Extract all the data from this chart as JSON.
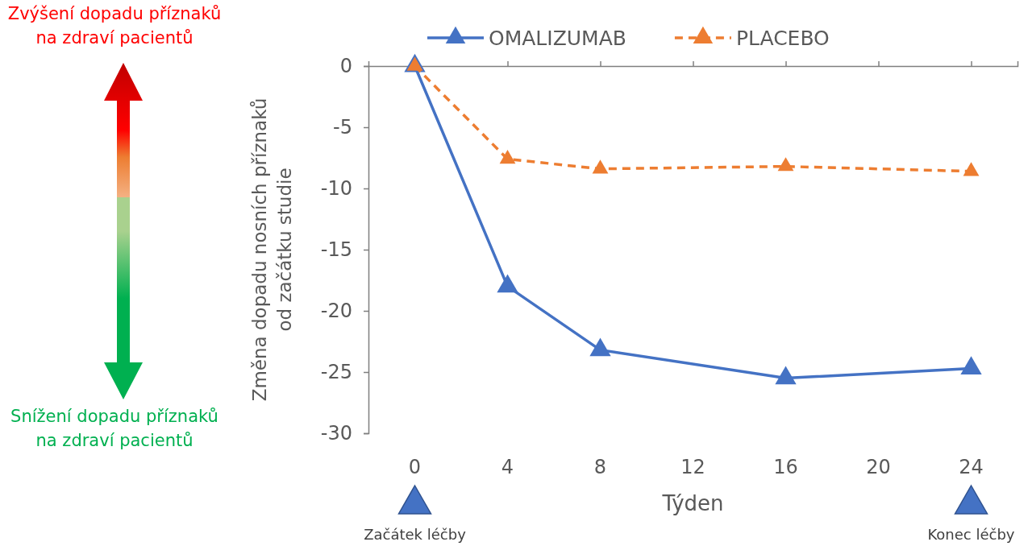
{
  "chart_data": {
    "type": "line",
    "xlabel": "Týden",
    "ylabel": "Změna dopadu nosních příznaků od začátku studie",
    "x": [
      0,
      4,
      8,
      16,
      24
    ],
    "series": [
      {
        "name": "OMALIZUMAB",
        "color": "#4472c4",
        "values": [
          0,
          -18.0,
          -23.2,
          -25.5,
          -24.7
        ],
        "line_style": "solid"
      },
      {
        "name": "PLACEBO",
        "color": "#ed7d31",
        "values": [
          0,
          -7.6,
          -8.4,
          -8.2,
          -8.6
        ],
        "line_style": "dashed"
      }
    ],
    "xlim": [
      -2,
      26
    ],
    "xticks": [
      0,
      4,
      8,
      12,
      16,
      20,
      24
    ],
    "ylim": [
      -30,
      0
    ],
    "yticks": [
      -30,
      -25,
      -20,
      -15,
      -10,
      -5,
      0
    ],
    "marker": "triangle",
    "legend": "top",
    "grid": false,
    "annotations": [
      "Zvýšení dopadu příznaků na zdraví pacientů",
      "Snížení dopadu příznaků na zdraví pacientů",
      "Začátek léčby",
      "Konec léčby"
    ]
  }
}
